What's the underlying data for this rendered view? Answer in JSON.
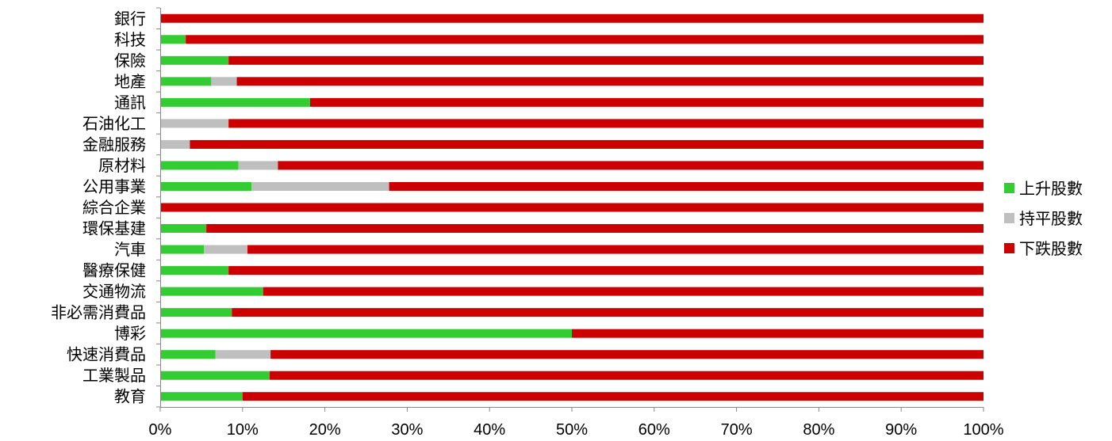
{
  "chart_data": {
    "type": "bar",
    "orientation": "horizontal",
    "stacked": "percent",
    "categories": [
      "銀行",
      "科技",
      "保險",
      "地產",
      "通訊",
      "石油化工",
      "金融服務",
      "原材料",
      "公用事業",
      "綜合企業",
      "環保基建",
      "汽車",
      "醫療保健",
      "交通物流",
      "非必需消費品",
      "博彩",
      "快速消費品",
      "工業製品",
      "教育"
    ],
    "series": [
      {
        "name": "上升股數",
        "color": "#33cc33",
        "values": [
          0,
          3.1,
          8.3,
          6.2,
          18.2,
          0,
          0,
          9.5,
          11.1,
          0,
          5.6,
          5.3,
          8.3,
          12.5,
          8.7,
          50,
          6.7,
          13.3,
          10
        ]
      },
      {
        "name": "持平股數",
        "color": "#bfbfbf",
        "values": [
          0,
          0,
          0,
          3.1,
          0,
          8.3,
          3.6,
          4.8,
          16.7,
          0,
          0,
          5.3,
          0,
          0,
          0,
          0,
          6.7,
          0,
          0
        ]
      },
      {
        "name": "下跌股數",
        "color": "#cc0000",
        "values": [
          100,
          96.9,
          91.7,
          90.7,
          81.8,
          91.7,
          96.4,
          85.7,
          72.2,
          100,
          94.4,
          89.4,
          91.7,
          87.5,
          91.3,
          50,
          86.6,
          86.7,
          90
        ]
      }
    ],
    "xlim": [
      0,
      100
    ],
    "x_ticks": [
      "0%",
      "10%",
      "20%",
      "30%",
      "40%",
      "50%",
      "60%",
      "70%",
      "80%",
      "90%",
      "100%"
    ],
    "title": "",
    "xlabel": "",
    "ylabel": "",
    "grid": false,
    "legend_position": "right"
  }
}
